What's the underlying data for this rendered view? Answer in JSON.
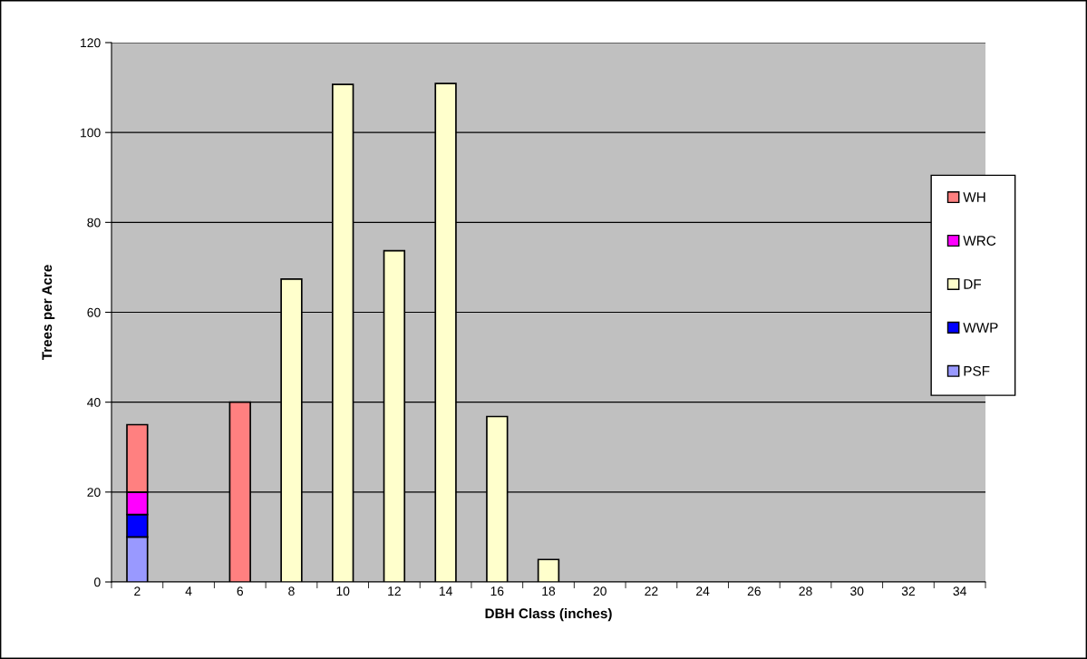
{
  "chart_data": {
    "type": "bar",
    "stacked": true,
    "xlabel": "DBH Class (inches)",
    "ylabel": "Trees per Acre",
    "categories": [
      "2",
      "4",
      "6",
      "8",
      "10",
      "12",
      "14",
      "16",
      "18",
      "20",
      "22",
      "24",
      "26",
      "28",
      "30",
      "32",
      "34"
    ],
    "series": [
      {
        "name": "PSF",
        "color": "#9999ff",
        "values": [
          10,
          0,
          0,
          0,
          0,
          0,
          0,
          0,
          0,
          0,
          0,
          0,
          0,
          0,
          0,
          0,
          0
        ]
      },
      {
        "name": "WWP",
        "color": "#0000ff",
        "values": [
          5,
          0,
          0,
          0,
          0,
          0,
          0,
          0,
          0,
          0,
          0,
          0,
          0,
          0,
          0,
          0,
          0
        ]
      },
      {
        "name": "DF",
        "color": "#ffffcc",
        "values": [
          0,
          0,
          0,
          67.4,
          110.7,
          73.7,
          110.9,
          36.8,
          5,
          0,
          0,
          0,
          0,
          0,
          0,
          0,
          0
        ]
      },
      {
        "name": "WRC",
        "color": "#ff00ff",
        "values": [
          5,
          0,
          0,
          0,
          0,
          0,
          0,
          0,
          0,
          0,
          0,
          0,
          0,
          0,
          0,
          0,
          0
        ]
      },
      {
        "name": "WH",
        "color": "#ff8080",
        "values": [
          15,
          0,
          40,
          0,
          0,
          0,
          0,
          0,
          0,
          0,
          0,
          0,
          0,
          0,
          0,
          0,
          0
        ]
      }
    ],
    "ylim": [
      0,
      120
    ],
    "yticks": [
      0,
      20,
      40,
      60,
      80,
      100,
      120
    ],
    "grid": "y",
    "legend": "right"
  }
}
